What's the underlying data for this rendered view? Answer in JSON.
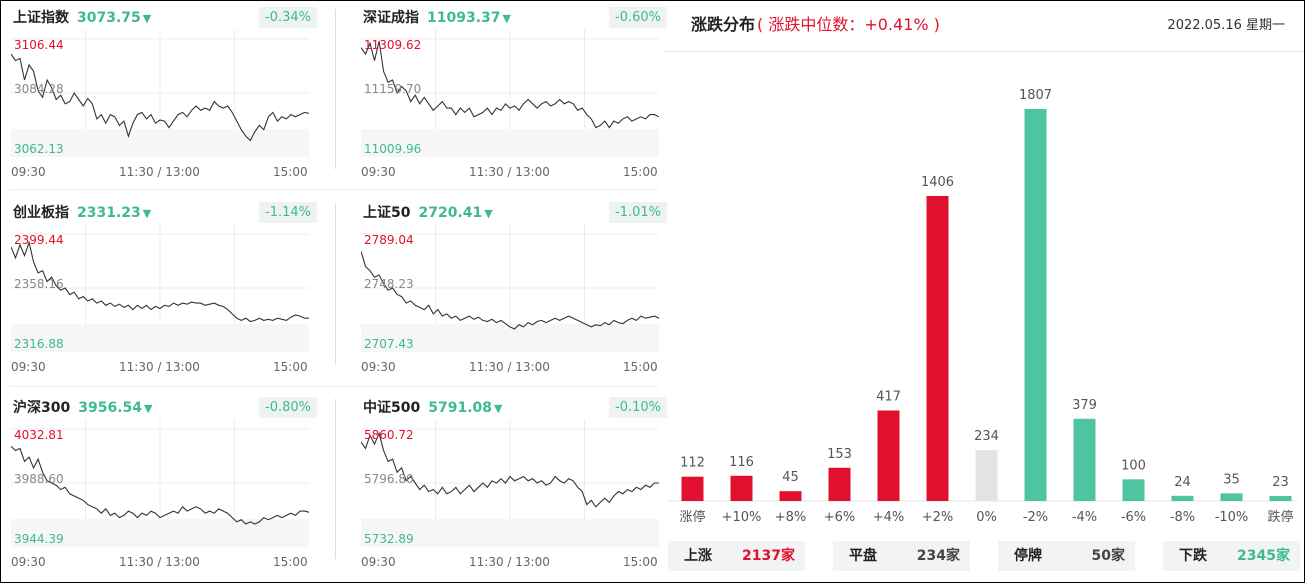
{
  "indices": [
    {
      "name": "上证指数",
      "value": "3073.75",
      "arrow": "▼",
      "pct": "-0.34%",
      "high": "3106.44",
      "mid": "3084.28",
      "low": "3062.13",
      "t_start": "09:30",
      "t_mid": "11:30 / 13:00",
      "t_end": "15:00",
      "series": [
        0.86,
        0.8,
        0.82,
        0.62,
        0.76,
        0.7,
        0.52,
        0.46,
        0.62,
        0.55,
        0.44,
        0.48,
        0.4,
        0.42,
        0.5,
        0.44,
        0.38,
        0.45,
        0.4,
        0.26,
        0.3,
        0.22,
        0.3,
        0.28,
        0.2,
        0.24,
        0.1,
        0.22,
        0.3,
        0.32,
        0.26,
        0.3,
        0.22,
        0.25,
        0.24,
        0.18,
        0.24,
        0.3,
        0.32,
        0.28,
        0.34,
        0.38,
        0.34,
        0.36,
        0.34,
        0.42,
        0.38,
        0.36,
        0.38,
        0.32,
        0.24,
        0.16,
        0.1,
        0.06,
        0.14,
        0.2,
        0.16,
        0.28,
        0.32,
        0.24,
        0.28,
        0.26,
        0.3,
        0.28,
        0.3,
        0.32,
        0.31
      ]
    },
    {
      "name": "深证成指",
      "value": "11093.37",
      "arrow": "▼",
      "pct": "-0.60%",
      "high": "11309.62",
      "mid": "11159.70",
      "low": "11009.96",
      "t_start": "09:30",
      "t_mid": "11:30 / 13:00",
      "t_end": "15:00",
      "series": [
        0.92,
        0.86,
        0.96,
        0.8,
        0.98,
        0.7,
        0.6,
        0.62,
        0.5,
        0.56,
        0.52,
        0.42,
        0.48,
        0.4,
        0.46,
        0.4,
        0.34,
        0.38,
        0.42,
        0.36,
        0.36,
        0.3,
        0.36,
        0.32,
        0.36,
        0.28,
        0.3,
        0.32,
        0.36,
        0.3,
        0.36,
        0.34,
        0.4,
        0.36,
        0.38,
        0.34,
        0.4,
        0.44,
        0.4,
        0.36,
        0.4,
        0.42,
        0.38,
        0.4,
        0.44,
        0.4,
        0.42,
        0.4,
        0.34,
        0.36,
        0.3,
        0.26,
        0.18,
        0.2,
        0.24,
        0.18,
        0.24,
        0.22,
        0.26,
        0.28,
        0.24,
        0.26,
        0.28,
        0.26,
        0.3,
        0.3,
        0.28
      ]
    },
    {
      "name": "创业板指",
      "value": "2331.23",
      "arrow": "▼",
      "pct": "-1.14%",
      "high": "2399.44",
      "mid": "2358.16",
      "low": "2316.88",
      "t_start": "09:30",
      "t_mid": "11:30 / 13:00",
      "t_end": "15:00",
      "series": [
        0.88,
        0.78,
        0.9,
        0.8,
        0.92,
        0.74,
        0.64,
        0.66,
        0.56,
        0.6,
        0.52,
        0.48,
        0.5,
        0.44,
        0.46,
        0.4,
        0.42,
        0.38,
        0.4,
        0.36,
        0.38,
        0.34,
        0.36,
        0.33,
        0.35,
        0.32,
        0.34,
        0.3,
        0.34,
        0.31,
        0.34,
        0.3,
        0.33,
        0.31,
        0.34,
        0.33,
        0.36,
        0.34,
        0.36,
        0.35,
        0.37,
        0.36,
        0.36,
        0.34,
        0.35,
        0.36,
        0.34,
        0.33,
        0.3,
        0.26,
        0.22,
        0.2,
        0.22,
        0.19,
        0.2,
        0.22,
        0.2,
        0.21,
        0.2,
        0.22,
        0.21,
        0.2,
        0.23,
        0.25,
        0.24,
        0.22,
        0.22
      ]
    },
    {
      "name": "上证50",
      "value": "2720.41",
      "arrow": "▼",
      "pct": "-1.01%",
      "high": "2789.04",
      "mid": "2748.23",
      "low": "2707.43",
      "t_start": "09:30",
      "t_mid": "11:30 / 13:00",
      "t_end": "15:00",
      "series": [
        0.84,
        0.7,
        0.66,
        0.6,
        0.62,
        0.54,
        0.48,
        0.5,
        0.44,
        0.42,
        0.36,
        0.38,
        0.34,
        0.32,
        0.3,
        0.34,
        0.26,
        0.3,
        0.24,
        0.26,
        0.22,
        0.24,
        0.2,
        0.22,
        0.24,
        0.21,
        0.23,
        0.2,
        0.19,
        0.21,
        0.18,
        0.2,
        0.17,
        0.14,
        0.12,
        0.16,
        0.14,
        0.18,
        0.16,
        0.19,
        0.2,
        0.18,
        0.2,
        0.22,
        0.2,
        0.22,
        0.24,
        0.22,
        0.2,
        0.18,
        0.16,
        0.14,
        0.16,
        0.15,
        0.18,
        0.16,
        0.2,
        0.18,
        0.17,
        0.2,
        0.22,
        0.2,
        0.24,
        0.22,
        0.23,
        0.24,
        0.22
      ]
    },
    {
      "name": "沪深300",
      "value": "3956.54",
      "arrow": "▼",
      "pct": "-0.80%",
      "high": "4032.81",
      "mid": "3988.60",
      "low": "3944.39",
      "t_start": "09:30",
      "t_mid": "11:30 / 13:00",
      "t_end": "15:00",
      "series": [
        0.84,
        0.8,
        0.82,
        0.7,
        0.74,
        0.64,
        0.72,
        0.6,
        0.52,
        0.5,
        0.48,
        0.44,
        0.46,
        0.4,
        0.38,
        0.36,
        0.34,
        0.3,
        0.28,
        0.26,
        0.22,
        0.26,
        0.2,
        0.22,
        0.18,
        0.2,
        0.24,
        0.22,
        0.18,
        0.22,
        0.2,
        0.24,
        0.22,
        0.18,
        0.2,
        0.22,
        0.24,
        0.22,
        0.28,
        0.24,
        0.26,
        0.28,
        0.26,
        0.22,
        0.24,
        0.22,
        0.26,
        0.24,
        0.22,
        0.18,
        0.14,
        0.16,
        0.12,
        0.14,
        0.12,
        0.14,
        0.18,
        0.16,
        0.18,
        0.2,
        0.18,
        0.2,
        0.22,
        0.2,
        0.24,
        0.24,
        0.23
      ]
    },
    {
      "name": "中证500",
      "value": "5791.08",
      "arrow": "▼",
      "pct": "-0.10%",
      "high": "5860.72",
      "mid": "5796.80",
      "low": "5732.89",
      "t_start": "09:30",
      "t_mid": "11:30 / 13:00",
      "t_end": "15:00",
      "series": [
        0.88,
        0.82,
        0.94,
        0.86,
        0.96,
        0.8,
        0.7,
        0.72,
        0.6,
        0.64,
        0.52,
        0.56,
        0.5,
        0.44,
        0.48,
        0.42,
        0.44,
        0.4,
        0.46,
        0.4,
        0.42,
        0.46,
        0.4,
        0.44,
        0.48,
        0.42,
        0.46,
        0.5,
        0.46,
        0.52,
        0.5,
        0.54,
        0.5,
        0.56,
        0.52,
        0.54,
        0.56,
        0.52,
        0.54,
        0.5,
        0.52,
        0.48,
        0.5,
        0.56,
        0.52,
        0.5,
        0.54,
        0.52,
        0.46,
        0.42,
        0.3,
        0.34,
        0.28,
        0.32,
        0.36,
        0.32,
        0.38,
        0.42,
        0.4,
        0.44,
        0.42,
        0.46,
        0.44,
        0.48,
        0.46,
        0.5,
        0.5
      ]
    }
  ],
  "dist": {
    "title": "涨跌分布",
    "subtitle": "( 涨跌中位数：+0.41% )",
    "date": "2022.05.16 星期一"
  },
  "chart_data": {
    "type": "bar",
    "title": "涨跌分布",
    "categories": [
      "涨停",
      "+10%",
      "+8%",
      "+6%",
      "+4%",
      "+2%",
      "0%",
      "-2%",
      "-4%",
      "-6%",
      "-8%",
      "-10%",
      "跌停"
    ],
    "values": [
      112,
      116,
      45,
      153,
      417,
      1406,
      234,
      1807,
      379,
      100,
      24,
      35,
      23
    ],
    "colors": [
      "#e0102e",
      "#e0102e",
      "#e0102e",
      "#e0102e",
      "#e0102e",
      "#e0102e",
      "#e3e3e3",
      "#4fc4a0",
      "#4fc4a0",
      "#4fc4a0",
      "#4fc4a0",
      "#4fc4a0",
      "#4fc4a0"
    ],
    "ylim": [
      0,
      1807
    ]
  },
  "summary": {
    "up_label": "上涨",
    "up_value": "2137家",
    "flat_label": "平盘",
    "flat_value": "234家",
    "halt_label": "停牌",
    "halt_value": "50家",
    "down_label": "下跌",
    "down_value": "2345家"
  },
  "colors": {
    "up": "#e0102e",
    "down": "#3dbb8c",
    "flat": "#e3e3e3"
  }
}
